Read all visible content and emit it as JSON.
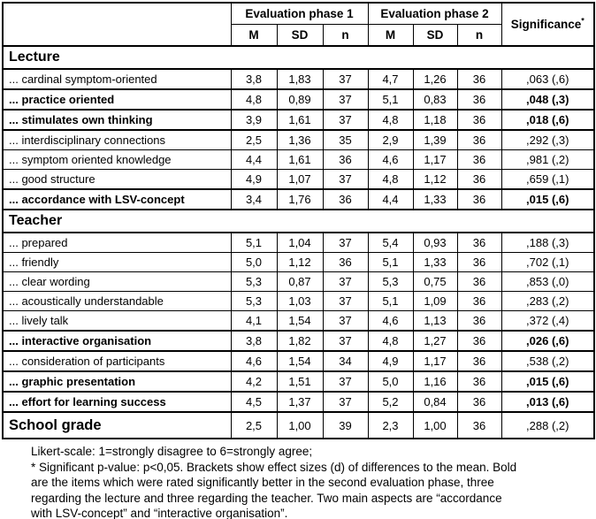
{
  "table": {
    "header": {
      "phase1": "Evaluation phase 1",
      "phase2": "Evaluation phase 2",
      "significance": "Significance",
      "significance_note_symbol": "*",
      "subcols": [
        "M",
        "SD",
        "n",
        "M",
        "SD",
        "n"
      ]
    },
    "sections": [
      {
        "title": "Lecture",
        "rows": [
          {
            "label": "... cardinal symptom-oriented",
            "bold": false,
            "values": [
              "3,8",
              "1,83",
              "37",
              "4,7",
              "1,26",
              "36"
            ],
            "significance": ",063 (,6)"
          },
          {
            "label": "... practice oriented",
            "bold": true,
            "values": [
              "4,8",
              "0,89",
              "37",
              "5,1",
              "0,83",
              "36"
            ],
            "significance": ",048 (,3)"
          },
          {
            "label": "... stimulates own thinking",
            "bold": true,
            "values": [
              "3,9",
              "1,61",
              "37",
              "4,8",
              "1,18",
              "36"
            ],
            "significance": ",018 (,6)"
          },
          {
            "label": "... interdisciplinary connections",
            "bold": false,
            "values": [
              "2,5",
              "1,36",
              "35",
              "2,9",
              "1,39",
              "36"
            ],
            "significance": ",292 (,3)"
          },
          {
            "label": "... symptom oriented knowledge",
            "bold": false,
            "values": [
              "4,4",
              "1,61",
              "36",
              "4,6",
              "1,17",
              "36"
            ],
            "significance": ",981 (,2)"
          },
          {
            "label": "... good structure",
            "bold": false,
            "values": [
              "4,9",
              "1,07",
              "37",
              "4,8",
              "1,12",
              "36"
            ],
            "significance": ",659 (,1)"
          },
          {
            "label": "... accordance with LSV-concept",
            "bold": true,
            "values": [
              "3,4",
              "1,76",
              "36",
              "4,4",
              "1,33",
              "36"
            ],
            "significance": ",015 (,6)"
          }
        ]
      },
      {
        "title": "Teacher",
        "rows": [
          {
            "label": "... prepared",
            "bold": false,
            "values": [
              "5,1",
              "1,04",
              "37",
              "5,4",
              "0,93",
              "36"
            ],
            "significance": ",188 (,3)"
          },
          {
            "label": "... friendly",
            "bold": false,
            "values": [
              "5,0",
              "1,12",
              "36",
              "5,1",
              "1,33",
              "36"
            ],
            "significance": ",702 (,1)"
          },
          {
            "label": "... clear wording",
            "bold": false,
            "values": [
              "5,3",
              "0,87",
              "37",
              "5,3",
              "0,75",
              "36"
            ],
            "significance": ",853 (,0)"
          },
          {
            "label": "... acoustically understandable",
            "bold": false,
            "values": [
              "5,3",
              "1,03",
              "37",
              "5,1",
              "1,09",
              "36"
            ],
            "significance": ",283 (,2)"
          },
          {
            "label": "... lively talk",
            "bold": false,
            "values": [
              "4,1",
              "1,54",
              "37",
              "4,6",
              "1,13",
              "36"
            ],
            "significance": ",372 (,4)"
          },
          {
            "label": "... interactive organisation",
            "bold": true,
            "values": [
              "3,8",
              "1,82",
              "37",
              "4,8",
              "1,27",
              "36"
            ],
            "significance": ",026 (,6)"
          },
          {
            "label": "... consideration of participants",
            "bold": false,
            "values": [
              "4,6",
              "1,54",
              "34",
              "4,9",
              "1,17",
              "36"
            ],
            "significance": ",538 (,2)"
          },
          {
            "label": "... graphic presentation",
            "bold": true,
            "values": [
              "4,2",
              "1,51",
              "37",
              "5,0",
              "1,16",
              "36"
            ],
            "significance": ",015 (,6)"
          },
          {
            "label": "... effort for learning success",
            "bold": true,
            "values": [
              "4,5",
              "1,37",
              "37",
              "5,2",
              "0,84",
              "36"
            ],
            "significance": ",013 (,6)"
          }
        ]
      }
    ],
    "grade_row": {
      "label": "School grade",
      "values": [
        "2,5",
        "1,00",
        "39",
        "2,3",
        "1,00",
        "36"
      ],
      "significance": ",288 (,2)"
    }
  },
  "notes": {
    "lines": [
      "Likert-scale: 1=strongly disagree to 6=strongly agree;",
      "* Significant p-value: p<0,05. Brackets show effect sizes (d) of differences to the mean. Bold",
      "are the items which were rated significantly better in the second evaluation phase, three",
      "regarding the lecture and three regarding the teacher. Two main aspects are “accordance",
      "with LSV-concept” and “interactive organisation”."
    ]
  }
}
